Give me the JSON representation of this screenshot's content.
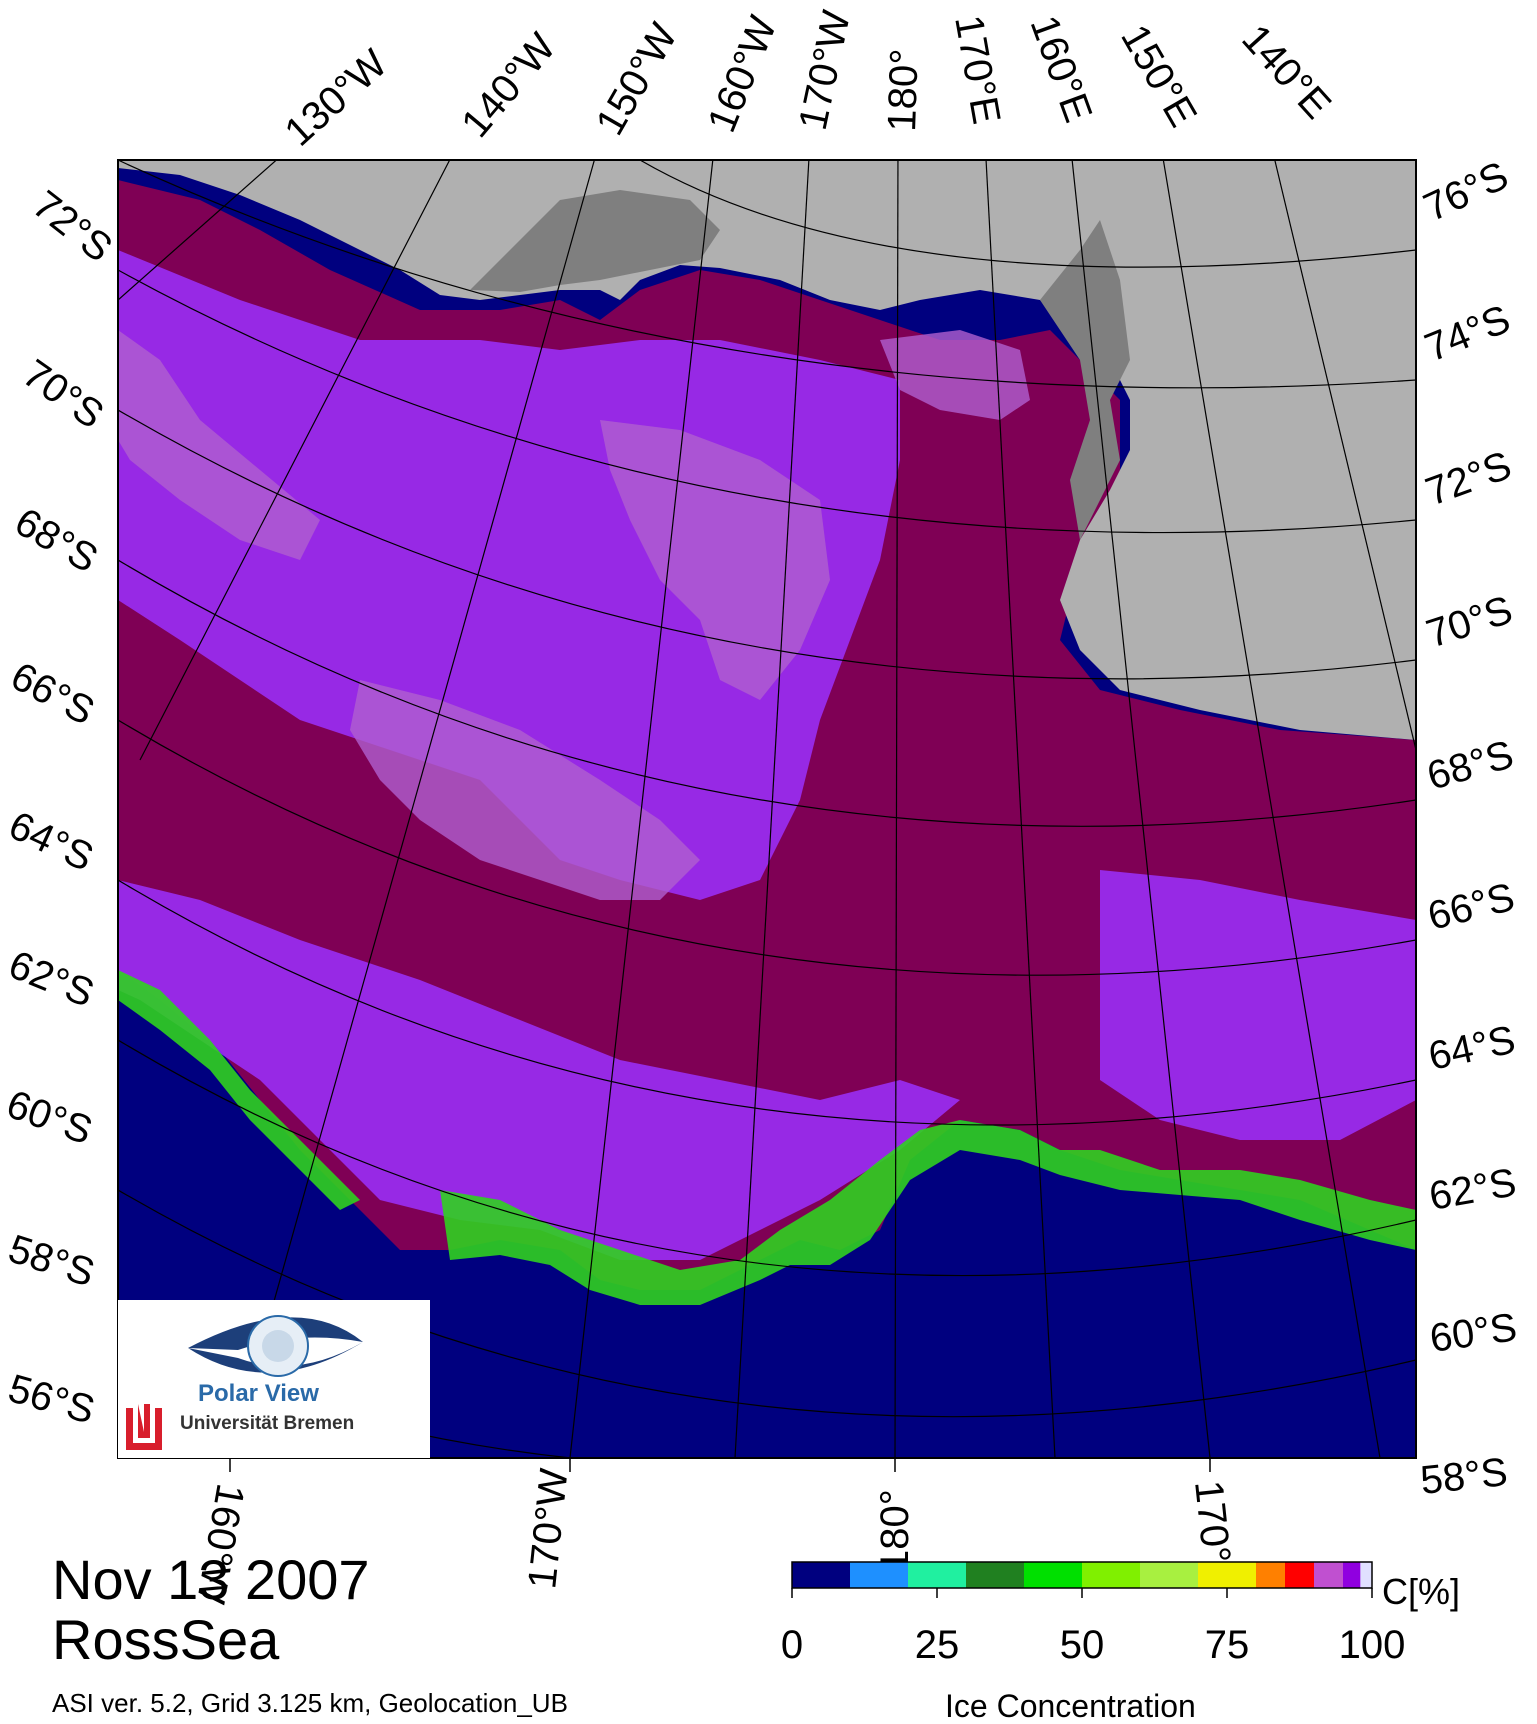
{
  "map": {
    "top_lon_labels": [
      "130°W",
      "140°W",
      "150°W",
      "160°W",
      "170°W",
      "180°",
      "170°E",
      "160°E",
      "150°E",
      "140°E"
    ],
    "left_lat_labels": [
      "72°S",
      "70°S",
      "68°S",
      "66°S",
      "64°S",
      "62°S",
      "60°S",
      "58°S",
      "56°S"
    ],
    "right_lat_labels": [
      "76°S",
      "74°S",
      "72°S",
      "70°S",
      "68°S",
      "66°S",
      "64°S",
      "62°S",
      "60°S",
      "58°S"
    ],
    "bottom_lon_labels": [
      "160°W",
      "170°W",
      "180°",
      "170°"
    ],
    "colors": {
      "ocean": "#00007f",
      "land": "#b0b0b0",
      "land_dark": "#7f7f7f",
      "ice_high": "#7f0055",
      "ice_mid": "#9b30ff",
      "ice_low": "#b05fd0"
    }
  },
  "logo": {
    "title": "Polar View",
    "subtitle": "Universität Bremen"
  },
  "date": "Nov 13 2007",
  "region": "RossSea",
  "info": "ASI ver. 5.2,  Grid 3.125 km, Geolocation_UB",
  "colorbar": {
    "title": "Ice Concentration",
    "unit": "C[%]",
    "ticks": [
      "0",
      "25",
      "50",
      "75",
      "100"
    ],
    "tick_values": [
      0,
      25,
      50,
      75,
      100
    ],
    "bins": [
      {
        "from": 0,
        "to": 10,
        "color": "#00007f"
      },
      {
        "from": 10,
        "to": 20,
        "color": "#1e90ff"
      },
      {
        "from": 20,
        "to": 30,
        "color": "#20f0a0"
      },
      {
        "from": 30,
        "to": 40,
        "color": "#208020"
      },
      {
        "from": 40,
        "to": 50,
        "color": "#00e000"
      },
      {
        "from": 50,
        "to": 60,
        "color": "#80f000"
      },
      {
        "from": 60,
        "to": 70,
        "color": "#a8f040"
      },
      {
        "from": 70,
        "to": 75,
        "color": "#f0f000"
      },
      {
        "from": 75,
        "to": 80,
        "color": "#f0f000"
      },
      {
        "from": 80,
        "to": 85,
        "color": "#ff8000"
      },
      {
        "from": 85,
        "to": 90,
        "color": "#ff0000"
      },
      {
        "from": 90,
        "to": 95,
        "color": "#c050d0"
      },
      {
        "from": 95,
        "to": 98,
        "color": "#9000e0"
      },
      {
        "from": 98,
        "to": 100,
        "color": "#e0e0ff"
      }
    ]
  }
}
